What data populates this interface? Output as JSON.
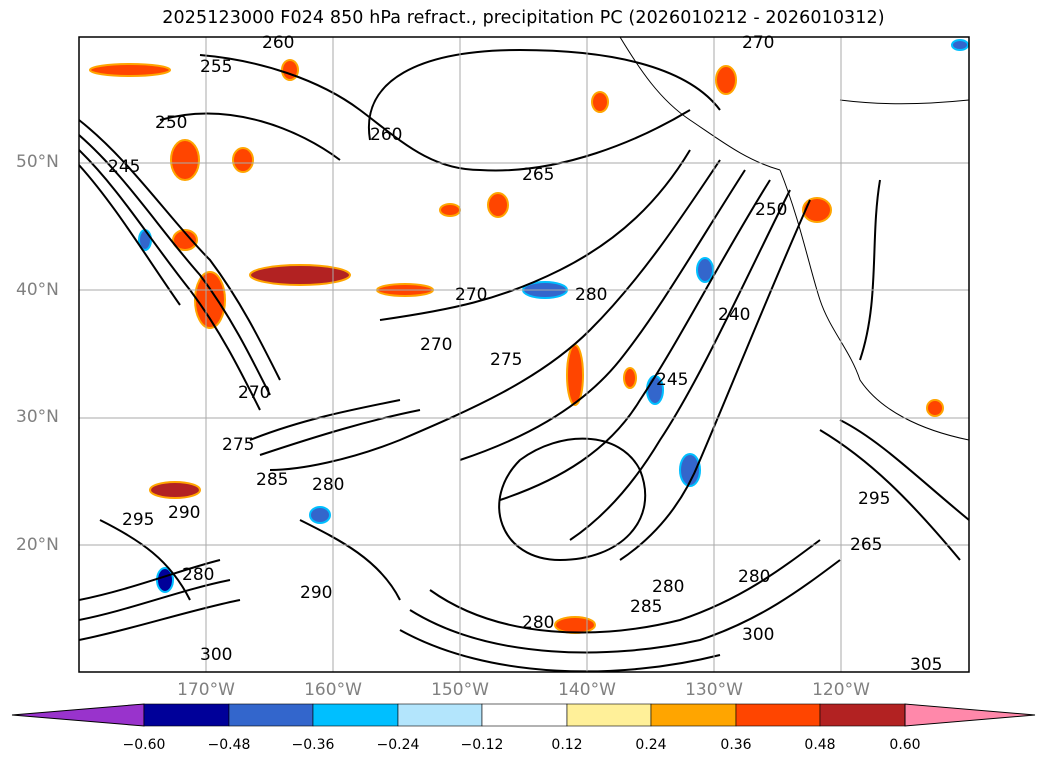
{
  "title": "2025123000 F024 850 hPa refract., precipitation PC (2026010212 - 2026010312)",
  "map": {
    "lat_labels": [
      "50°N",
      "40°N",
      "30°N",
      "20°N"
    ],
    "lon_labels": [
      "170°W",
      "160°W",
      "150°W",
      "140°W",
      "130°W",
      "120°W"
    ],
    "contour_labels": [
      "260",
      "255",
      "250",
      "245",
      "260",
      "265",
      "270",
      "250",
      "240",
      "245",
      "280",
      "275",
      "270",
      "270",
      "275",
      "280",
      "285",
      "290",
      "295",
      "280",
      "290",
      "300",
      "280",
      "285",
      "300",
      "280",
      "295",
      "305",
      "265",
      "280",
      "270"
    ]
  },
  "colorbar": {
    "ticks": [
      "−0.60",
      "−0.48",
      "−0.36",
      "−0.24",
      "−0.12",
      "0.12",
      "0.24",
      "0.36",
      "0.48",
      "0.60"
    ],
    "colors": [
      "#9933cc",
      "#000099",
      "#3366cc",
      "#00bfff",
      "#b3e5fc",
      "#ffffff",
      "#fff099",
      "#ffa500",
      "#ff4500",
      "#b22222",
      "#ff88aa"
    ]
  }
}
